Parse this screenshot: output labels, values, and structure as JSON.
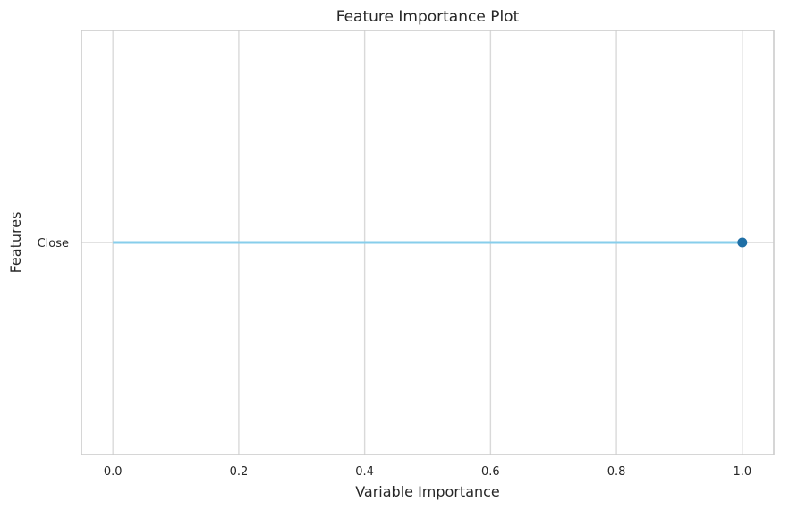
{
  "chart_data": {
    "type": "lollipop",
    "title": "Feature Importance Plot",
    "xlabel": "Variable Importance",
    "ylabel": "Features",
    "categories": [
      "Close"
    ],
    "values": [
      1.0
    ],
    "xlim": [
      -0.05,
      1.05
    ],
    "xticks": [
      0.0,
      0.2,
      0.4,
      0.6,
      0.8,
      1.0
    ],
    "xtick_labels": [
      "0.0",
      "0.2",
      "0.4",
      "0.6",
      "0.8",
      "1.0"
    ],
    "grid": true,
    "colors": {
      "stem": "#87ceeb",
      "marker": "#1f6fa6",
      "grid": "#d9d9d9",
      "frame": "#cccccc",
      "text": "#262626"
    }
  }
}
